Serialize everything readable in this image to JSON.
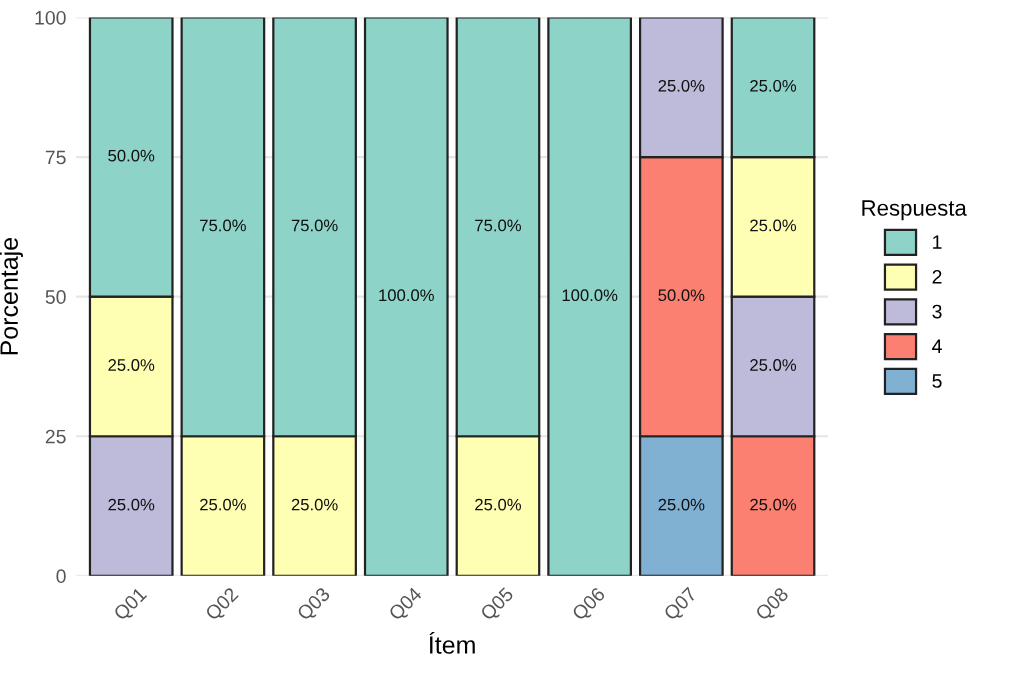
{
  "chart_data": {
    "type": "bar",
    "stacked": true,
    "xlabel": "Ítem",
    "ylabel": "Porcentaje",
    "legend_title": "Respuesta",
    "legend": "right",
    "categories": [
      "Q01",
      "Q02",
      "Q03",
      "Q04",
      "Q05",
      "Q06",
      "Q07",
      "Q08"
    ],
    "series": [
      {
        "name": "5",
        "color": "#80b1d3",
        "values": [
          null,
          null,
          null,
          null,
          null,
          null,
          25,
          null
        ],
        "value_labels": [
          null,
          null,
          null,
          null,
          null,
          null,
          "25.0%",
          null
        ]
      },
      {
        "name": "4",
        "color": "#fb8072",
        "values": [
          null,
          null,
          null,
          null,
          null,
          null,
          50,
          25
        ],
        "value_labels": [
          null,
          null,
          null,
          null,
          null,
          null,
          "50.0%",
          "25.0%"
        ]
      },
      {
        "name": "3",
        "color": "#bebada",
        "values": [
          25,
          null,
          null,
          null,
          null,
          null,
          25,
          25
        ],
        "value_labels": [
          "25.0%",
          null,
          null,
          null,
          null,
          null,
          "25.0%",
          "25.0%"
        ]
      },
      {
        "name": "2",
        "color": "#ffffb3",
        "values": [
          25,
          25,
          25,
          null,
          25,
          null,
          null,
          25
        ],
        "value_labels": [
          "25.0%",
          "25.0%",
          "25.0%",
          null,
          "25.0%",
          null,
          null,
          "25.0%"
        ]
      },
      {
        "name": "1",
        "color": "#8dd3c7",
        "values": [
          50,
          75,
          75,
          100,
          75,
          100,
          null,
          25
        ],
        "value_labels": [
          "50.0%",
          "75.0%",
          "75.0%",
          "100.0%",
          "75.0%",
          "100.0%",
          null,
          "25.0%"
        ]
      }
    ],
    "ylim": [
      0,
      100
    ],
    "yticks": [
      0,
      25,
      50,
      75,
      100
    ],
    "grid": true
  }
}
